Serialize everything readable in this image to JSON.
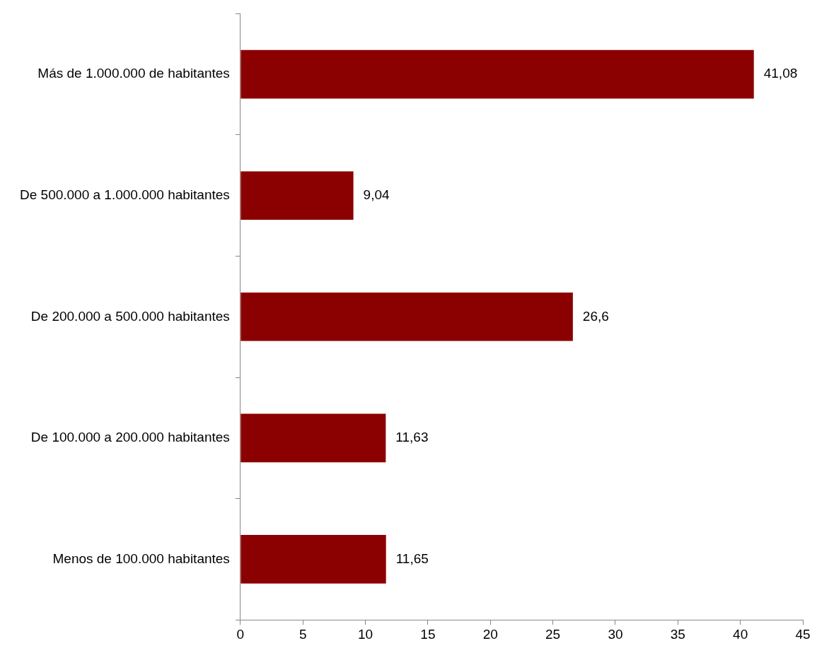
{
  "chart_data": {
    "type": "bar",
    "orientation": "horizontal",
    "categories": [
      "Más de 1.000.000 de habitantes",
      "De 500.000 a 1.000.000 habitantes",
      "De 200.000 a 500.000 habitantes",
      "De 100.000 a 200.000 habitantes",
      "Menos de 100.000 habitantes"
    ],
    "values": [
      41.08,
      9.04,
      26.6,
      11.63,
      11.65
    ],
    "value_labels": [
      "41,08",
      "9,04",
      "26,6",
      "11,63",
      "11,65"
    ],
    "color": "#8b0000",
    "xlim": [
      0,
      45
    ],
    "xticks": [
      0,
      5,
      10,
      15,
      20,
      25,
      30,
      35,
      40,
      45
    ],
    "grid": false,
    "legend": false
  }
}
